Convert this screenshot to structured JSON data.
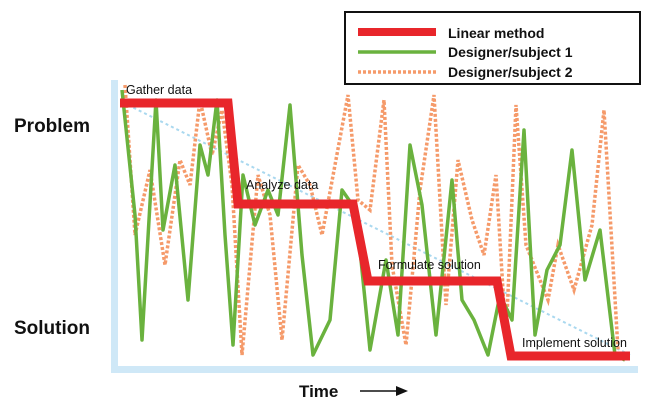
{
  "chart_data": {
    "type": "line",
    "y_categories": [
      "Problem",
      "Solution"
    ],
    "xlabel": "Time",
    "stages": [
      "Gather data",
      "Analyze data",
      "Formulate solution",
      "Implement solution"
    ],
    "legend_position": "top-right",
    "series": [
      {
        "name": "Linear method",
        "color": "#e8262b",
        "style": "solid-thick"
      },
      {
        "name": "Designer/subject 1",
        "color": "#6ab23e",
        "style": "solid"
      },
      {
        "name": "Designer/subject 2",
        "color": "#f59a6a",
        "style": "dotted"
      }
    ]
  }
}
